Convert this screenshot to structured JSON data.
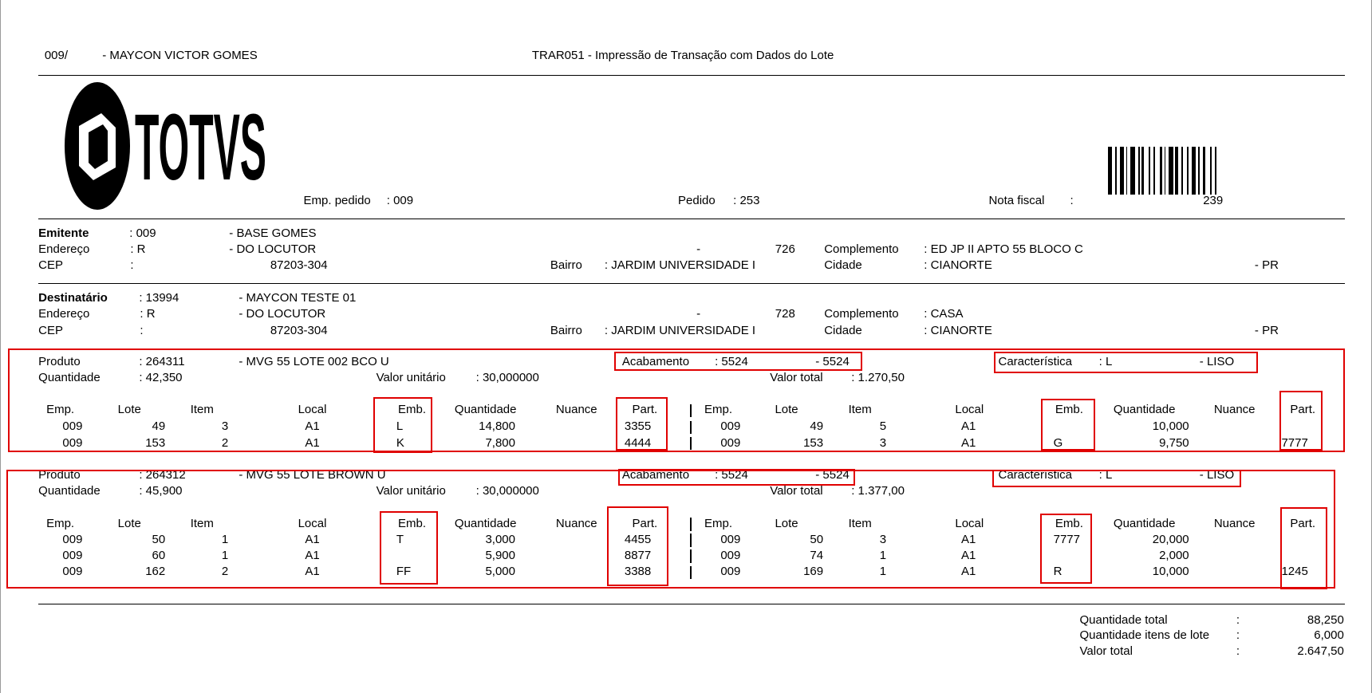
{
  "header": {
    "code": "009/",
    "name": "- MAYCON VICTOR GOMES",
    "title": "TRAR051 - Impressão de Transação com Dados do Lote"
  },
  "logo": "TOTVS",
  "order": {
    "emp_label": "Emp. pedido",
    "emp_value": ": 009",
    "pedido_label": "Pedido",
    "pedido_value": ": 253",
    "nota_label": "Nota fiscal",
    "nota_colon": ":",
    "nota_value": "239"
  },
  "parties": [
    {
      "label": "Emitente",
      "code": ": 009",
      "name": "- BASE GOMES",
      "end_label": "Endereço",
      "end_code": ": R",
      "end_name": "- DO LOCUTOR",
      "dash": "-",
      "number": "726",
      "compl_label": "Complemento",
      "compl": ": ED JP II APTO 55 BLOCO C",
      "cep_label": "CEP",
      "cep_colon": ":",
      "cep": "87203-304",
      "bairro_label": "Bairro",
      "bairro": ": JARDIM UNIVERSIDADE I",
      "cidade_label": "Cidade",
      "cidade": ": CIANORTE",
      "uf": "- PR"
    },
    {
      "label": "Destinatário",
      "code": ": 13994",
      "name": "- MAYCON TESTE 01",
      "end_label": "Endereço",
      "end_code": ": R",
      "end_name": "- DO LOCUTOR",
      "dash": "-",
      "number": "728",
      "compl_label": "Complemento",
      "compl": ": CASA",
      "cep_label": "CEP",
      "cep_colon": ":",
      "cep": "87203-304",
      "bairro_label": "Bairro",
      "bairro": ": JARDIM UNIVERSIDADE I",
      "cidade_label": "Cidade",
      "cidade": ": CIANORTE",
      "uf": "- PR"
    }
  ],
  "columns": [
    "Emp.",
    "Lote",
    "Item",
    "Local",
    "Emb.",
    "Quantidade",
    "Nuance",
    "Part."
  ],
  "products": [
    {
      "produto_label": "Produto",
      "produto": ": 264311",
      "desc": "- MVG 55 LOTE 002 BCO U",
      "acab_label": "Acabamento",
      "acab": ": 5524",
      "acab_desc": "- 5524",
      "car_label": "Característica",
      "car": ": L",
      "car_desc": "- LISO",
      "qtd_label": "Quantidade",
      "qtd": ": 42,350",
      "vu_label": "Valor unitário",
      "vu": ": 30,000000",
      "vt_label": "Valor total",
      "vt": ": 1.270,50",
      "left": [
        [
          "009",
          "49",
          "3",
          "A1",
          "L",
          "14,800",
          null,
          "3355"
        ],
        [
          "009",
          "153",
          "2",
          "A1",
          "K",
          "7,800",
          null,
          "4444"
        ]
      ],
      "right": [
        [
          "009",
          "49",
          "5",
          "A1",
          null,
          "10,000",
          null,
          null
        ],
        [
          "009",
          "153",
          "3",
          "A1",
          "G",
          "9,750",
          null,
          "7777"
        ]
      ]
    },
    {
      "produto_label": "Produto",
      "produto": ": 264312",
      "desc": "- MVG 55 LOTE BROWN U",
      "acab_label": "Acabamento",
      "acab": ": 5524",
      "acab_desc": "- 5524",
      "car_label": "Característica",
      "car": ": L",
      "car_desc": "- LISO",
      "qtd_label": "Quantidade",
      "qtd": ": 45,900",
      "vu_label": "Valor unitário",
      "vu": ": 30,000000",
      "vt_label": "Valor total",
      "vt": ": 1.377,00",
      "left": [
        [
          "009",
          "50",
          "1",
          "A1",
          "T",
          "3,000",
          null,
          "4455"
        ],
        [
          "009",
          "60",
          "1",
          "A1",
          null,
          "5,900",
          null,
          "8877"
        ],
        [
          "009",
          "162",
          "2",
          "A1",
          "FF",
          "5,000",
          null,
          "3388"
        ]
      ],
      "right": [
        [
          "009",
          "50",
          "3",
          "A1",
          "7777",
          "20,000",
          null,
          null
        ],
        [
          "009",
          "74",
          "1",
          "A1",
          null,
          "2,000",
          null,
          null
        ],
        [
          "009",
          "169",
          "1",
          "A1",
          "R",
          "10,000",
          null,
          "1245"
        ]
      ]
    }
  ],
  "totals": {
    "sep": ":",
    "items": [
      {
        "label": "Quantidade total",
        "value": "88,250"
      },
      {
        "label": "Quantidade itens de lote",
        "value": "6,000"
      },
      {
        "label": "Valor total",
        "value": "2.647,50"
      }
    ]
  }
}
